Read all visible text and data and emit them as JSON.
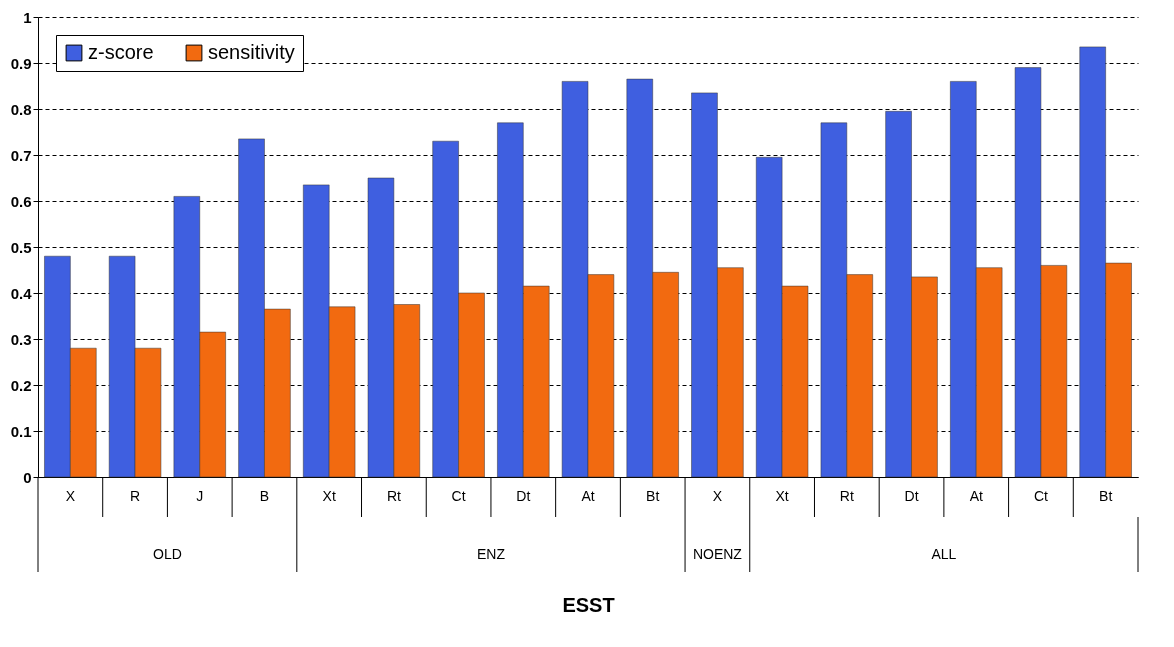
{
  "chart_data": {
    "type": "bar",
    "xlabel": "ESST",
    "categories": [
      "X",
      "R",
      "J",
      "B",
      "Xt",
      "Rt",
      "Ct",
      "Dt",
      "At",
      "Bt",
      "X",
      "Xt",
      "Rt",
      "Dt",
      "At",
      "Ct",
      "Bt"
    ],
    "series": [
      {
        "name": "z-score",
        "color": "#3f5fe0",
        "values": [
          0.48,
          0.48,
          0.61,
          0.735,
          0.635,
          0.65,
          0.73,
          0.77,
          0.86,
          0.865,
          0.835,
          0.695,
          0.77,
          0.795,
          0.86,
          0.89,
          0.935
        ]
      },
      {
        "name": "sensitivity",
        "color": "#f26a10",
        "values": [
          0.28,
          0.28,
          0.315,
          0.365,
          0.37,
          0.375,
          0.4,
          0.415,
          0.44,
          0.445,
          0.455,
          0.415,
          0.44,
          0.435,
          0.455,
          0.46,
          0.465
        ]
      }
    ],
    "annotations": [
      "OLD",
      "ENZ",
      "NOENZ",
      "ALL"
    ],
    "ylim": [
      0,
      1
    ],
    "yticks": [
      0,
      0.1,
      0.2,
      0.3,
      0.4,
      0.5,
      0.6,
      0.7,
      0.8,
      0.9,
      1
    ],
    "grid": "y",
    "legend": "top left"
  }
}
